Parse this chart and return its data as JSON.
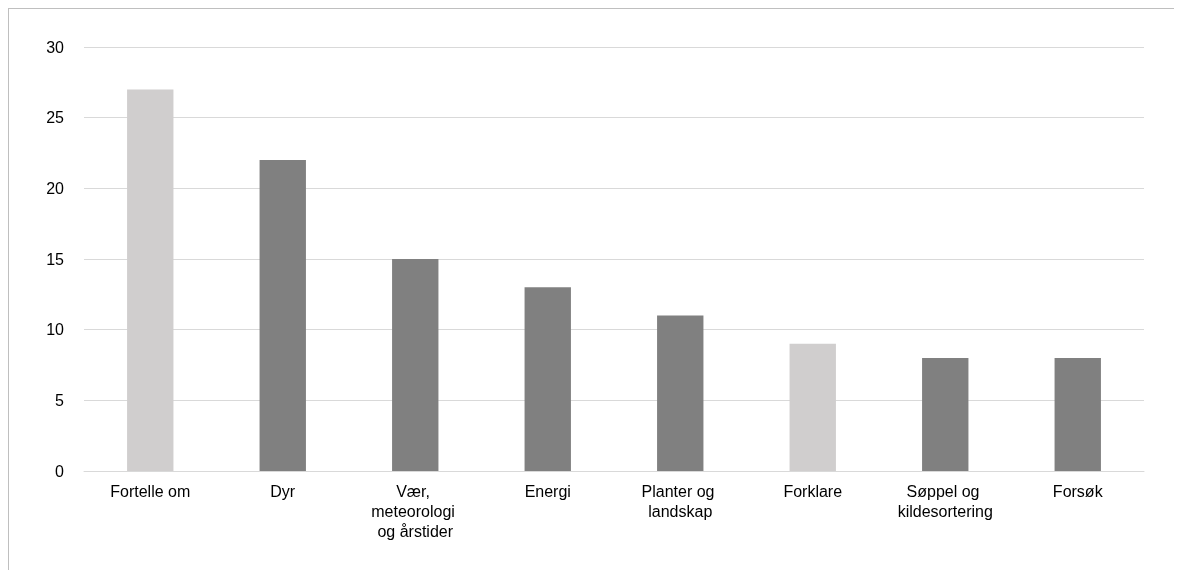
{
  "chart_data": {
    "type": "bar",
    "categories": [
      "Fortelle om",
      "Dyr",
      "Vær, meteorologi og årstider",
      "Energi",
      "Planter og landskap",
      "Forklare",
      "Søppel og kildesortering",
      "Forsøk"
    ],
    "values": [
      27,
      22,
      15,
      13,
      11,
      9,
      8,
      8
    ],
    "colors": [
      "#d0cece",
      "#808080",
      "#808080",
      "#808080",
      "#808080",
      "#d0cece",
      "#808080",
      "#808080"
    ],
    "ylim": [
      0,
      30
    ],
    "yticks": [
      0,
      5,
      10,
      15,
      20,
      25,
      30
    ],
    "grid": "y"
  }
}
